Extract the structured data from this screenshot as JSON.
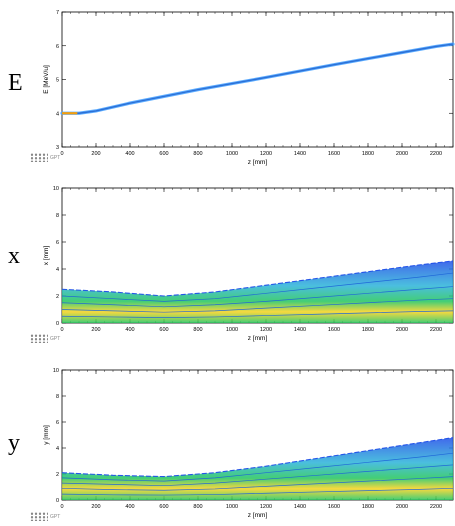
{
  "panels": [
    {
      "letter": "E",
      "chart_data": {
        "type": "line",
        "xlabel": "z [mm]",
        "ylabel": "E [MeV/u]",
        "xlim": [
          0,
          2300
        ],
        "ylim": [
          3,
          7
        ],
        "xticks": [
          0,
          200,
          400,
          600,
          800,
          1000,
          1200,
          1400,
          1600,
          1800,
          2000,
          2200
        ],
        "yticks": [
          3,
          4,
          5,
          6,
          7
        ],
        "grid": false,
        "series": [
          {
            "x": [
              0,
              100,
              200,
              400,
              600,
              800,
              1000,
              1200,
              1400,
              1600,
              1800,
              2000,
              2200,
              2300
            ],
            "y": [
              4.0,
              4.0,
              4.07,
              4.3,
              4.5,
              4.7,
              4.88,
              5.06,
              5.25,
              5.44,
              5.62,
              5.8,
              5.98,
              6.05
            ]
          }
        ]
      },
      "logo": "GPT"
    },
    {
      "letter": "x",
      "chart_data": {
        "type": "line",
        "xlabel": "z [mm]",
        "ylabel": "x [mm]",
        "xlim": [
          0,
          2300
        ],
        "ylim": [
          0,
          10
        ],
        "xticks": [
          0,
          200,
          400,
          600,
          800,
          1000,
          1200,
          1400,
          1600,
          1800,
          2000,
          2200
        ],
        "yticks": [
          0,
          2,
          4,
          6,
          8,
          10
        ],
        "grid": false,
        "series": [
          {
            "x": [
              0,
              300,
              600,
              900,
              1200,
              1500,
              1800,
              2100,
              2300
            ],
            "y": [
              2.5,
              2.3,
              2.0,
              2.3,
              2.8,
              3.3,
              3.8,
              4.3,
              4.6
            ]
          },
          {
            "x": [
              0,
              300,
              600,
              900,
              1200,
              1500,
              1800,
              2100,
              2300
            ],
            "y": [
              2.0,
              1.8,
              1.6,
              1.8,
              2.2,
              2.6,
              3.0,
              3.4,
              3.7
            ]
          },
          {
            "x": [
              0,
              300,
              600,
              900,
              1200,
              1500,
              1800,
              2100,
              2300
            ],
            "y": [
              1.5,
              1.35,
              1.2,
              1.35,
              1.6,
              1.9,
              2.2,
              2.5,
              2.7
            ]
          },
          {
            "x": [
              0,
              300,
              600,
              900,
              1200,
              1500,
              1800,
              2100,
              2300
            ],
            "y": [
              1.0,
              0.9,
              0.8,
              0.9,
              1.1,
              1.3,
              1.5,
              1.7,
              1.8
            ]
          },
          {
            "x": [
              0,
              300,
              600,
              900,
              1200,
              1500,
              1800,
              2100,
              2300
            ],
            "y": [
              0.5,
              0.45,
              0.4,
              0.45,
              0.55,
              0.65,
              0.75,
              0.85,
              0.9
            ]
          }
        ]
      },
      "logo": "GPT"
    },
    {
      "letter": "y",
      "chart_data": {
        "type": "line",
        "xlabel": "z [mm]",
        "ylabel": "y [mm]",
        "xlim": [
          0,
          2300
        ],
        "ylim": [
          0,
          10
        ],
        "xticks": [
          0,
          200,
          400,
          600,
          800,
          1000,
          1200,
          1400,
          1600,
          1800,
          2000,
          2200
        ],
        "yticks": [
          0,
          2,
          4,
          6,
          8,
          10
        ],
        "grid": false,
        "series": [
          {
            "x": [
              0,
              300,
              600,
              900,
              1200,
              1500,
              1800,
              2100,
              2300
            ],
            "y": [
              2.1,
              1.9,
              1.8,
              2.1,
              2.6,
              3.2,
              3.8,
              4.4,
              4.8
            ]
          },
          {
            "x": [
              0,
              300,
              600,
              900,
              1200,
              1500,
              1800,
              2100,
              2300
            ],
            "y": [
              1.7,
              1.55,
              1.45,
              1.7,
              2.1,
              2.5,
              2.9,
              3.3,
              3.6
            ]
          },
          {
            "x": [
              0,
              300,
              600,
              900,
              1200,
              1500,
              1800,
              2100,
              2300
            ],
            "y": [
              1.3,
              1.2,
              1.1,
              1.3,
              1.6,
              1.9,
              2.2,
              2.5,
              2.7
            ]
          },
          {
            "x": [
              0,
              300,
              600,
              900,
              1200,
              1500,
              1800,
              2100,
              2300
            ],
            "y": [
              0.9,
              0.8,
              0.75,
              0.85,
              1.05,
              1.25,
              1.45,
              1.65,
              1.8
            ]
          },
          {
            "x": [
              0,
              300,
              600,
              900,
              1200,
              1500,
              1800,
              2100,
              2300
            ],
            "y": [
              0.45,
              0.4,
              0.38,
              0.42,
              0.52,
              0.62,
              0.72,
              0.82,
              0.9
            ]
          }
        ]
      },
      "logo": "GPT"
    }
  ],
  "colors": {
    "axis": "#000000",
    "trace_dense": "#2b6fd6",
    "trace_sparse": "#1f4fe8",
    "core_green": "#22c55e",
    "core_yellow": "#f6d21c",
    "start_orange": "#f59e0b"
  }
}
